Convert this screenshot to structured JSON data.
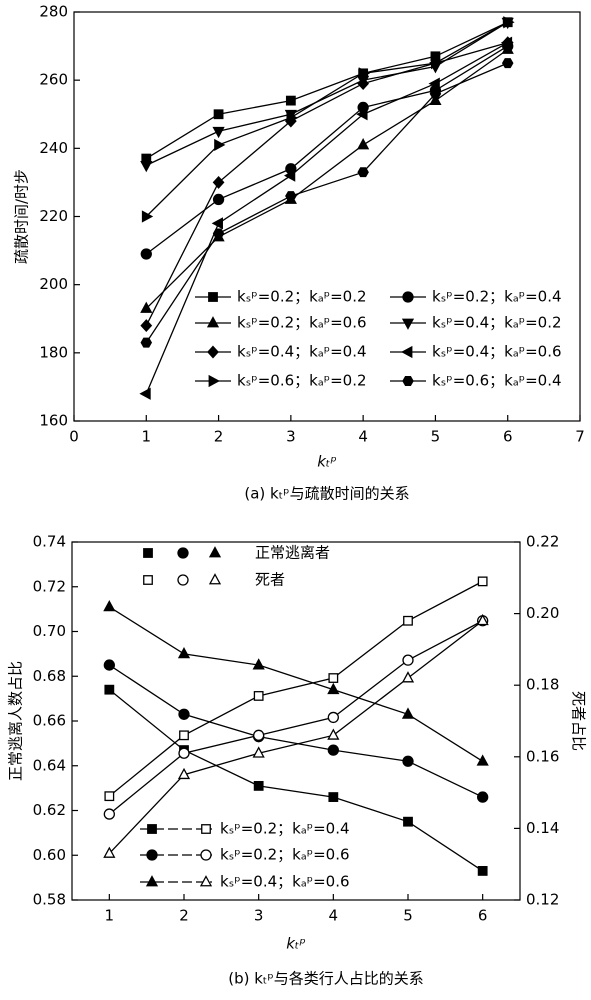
{
  "chart_data": [
    {
      "type": "line",
      "caption": "(a) kₜᵖ与疏散时间的关系",
      "xlabel": "kₜᵖ",
      "ylabel": "疏散时间/时步",
      "x": [
        1,
        2,
        3,
        4,
        5,
        6
      ],
      "xlim": [
        0,
        7
      ],
      "xticks": [
        0,
        1,
        2,
        3,
        4,
        5,
        6,
        7
      ],
      "ylim": [
        160,
        280
      ],
      "yticks": [
        160,
        180,
        200,
        220,
        240,
        260,
        280
      ],
      "color": "#000000",
      "series": [
        {
          "name": "kₛᵖ=0.2；kₐᵖ=0.2",
          "marker": "square",
          "values": [
            237,
            250,
            254,
            262,
            267,
            277
          ]
        },
        {
          "name": "kₛᵖ=0.2；kₐᵖ=0.4",
          "marker": "circle",
          "values": [
            209,
            225,
            234,
            252,
            257,
            270
          ]
        },
        {
          "name": "kₛᵖ=0.2；kₐᵖ=0.6",
          "marker": "triangle-up",
          "values": [
            193,
            214,
            225,
            241,
            254,
            269
          ]
        },
        {
          "name": "kₛᵖ=0.4；kₐᵖ=0.2",
          "marker": "triangle-down",
          "values": [
            235,
            245,
            250,
            260,
            264,
            277
          ]
        },
        {
          "name": "kₛᵖ=0.4；kₐᵖ=0.4",
          "marker": "diamond",
          "values": [
            188,
            230,
            248,
            259,
            265,
            271
          ]
        },
        {
          "name": "kₛᵖ=0.4；kₐᵖ=0.6",
          "marker": "triangle-left",
          "values": [
            168,
            218,
            232,
            250,
            259,
            271
          ]
        },
        {
          "name": "kₛᵖ=0.6；kₐᵖ=0.2",
          "marker": "triangle-right",
          "values": [
            220,
            241,
            249,
            262,
            265,
            277
          ]
        },
        {
          "name": "kₛᵖ=0.6；kₐᵖ=0.4",
          "marker": "hexagon",
          "values": [
            183,
            215,
            226,
            233,
            256,
            265
          ]
        }
      ]
    },
    {
      "type": "line",
      "caption": "(b) kₜᵖ与各类行人占比的关系",
      "xlabel": "kₜᵖ",
      "ylabel": "正常逃离人数占比",
      "y2label": "死者占比",
      "x": [
        1,
        2,
        3,
        4,
        5,
        6
      ],
      "xlim": [
        0.5,
        6.5
      ],
      "xticks": [
        1,
        2,
        3,
        4,
        5,
        6
      ],
      "ylim": [
        0.58,
        0.74
      ],
      "yticks": [
        0.58,
        {
          "value": 0.6,
          "label": "0.60"
        },
        0.62,
        0.64,
        0.66,
        0.68,
        {
          "value": 0.7,
          "label": "0.70"
        },
        0.72,
        0.74
      ],
      "y2lim": [
        0.12,
        0.22
      ],
      "y2ticks": [
        0.12,
        0.14,
        0.16,
        0.18,
        {
          "value": 0.2,
          "label": "0.20"
        },
        0.22
      ],
      "color": "#000000",
      "fill_legend": {
        "filled": "正常逃离者",
        "open": "死者"
      },
      "series": [
        {
          "name": "kₛᵖ=0.2；kₐᵖ=0.4",
          "marker": "square",
          "fill": "filled",
          "values": [
            0.674,
            0.647,
            0.631,
            0.626,
            0.615,
            0.593
          ]
        },
        {
          "name": "kₛᵖ=0.2；kₐᵖ=0.6",
          "marker": "circle",
          "fill": "filled",
          "values": [
            0.685,
            0.663,
            0.653,
            0.647,
            0.642,
            0.626
          ]
        },
        {
          "name": "kₛᵖ=0.4；kₐᵖ=0.6",
          "marker": "triangle-up",
          "fill": "filled",
          "values": [
            0.711,
            0.69,
            0.685,
            0.674,
            0.663,
            0.642
          ]
        },
        {
          "name": "kₛᵖ=0.2；kₐᵖ=0.4",
          "marker": "square",
          "fill": "open",
          "axis": "y2",
          "values": [
            0.149,
            0.166,
            0.177,
            0.182,
            0.198,
            0.209
          ]
        },
        {
          "name": "kₛᵖ=0.2；kₐᵖ=0.6",
          "marker": "circle",
          "fill": "open",
          "axis": "y2",
          "values": [
            0.144,
            0.161,
            0.166,
            0.171,
            0.187,
            0.198
          ]
        },
        {
          "name": "kₛᵖ=0.4；kₐᵖ=0.6",
          "marker": "triangle-up",
          "fill": "open",
          "axis": "y2",
          "values": [
            0.133,
            0.155,
            0.161,
            0.166,
            0.182,
            0.198
          ]
        }
      ]
    }
  ]
}
